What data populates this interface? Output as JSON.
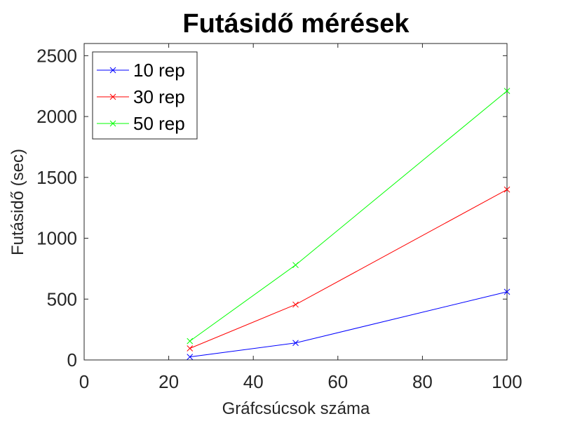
{
  "chart_data": {
    "type": "line",
    "title": "Futásidő mérések",
    "xlabel": "Gráfcsúcsok száma",
    "ylabel": "Futásidő (sec)",
    "xlim": [
      0,
      100
    ],
    "ylim": [
      0,
      2600
    ],
    "xticks": [
      "0",
      "20",
      "40",
      "60",
      "80",
      "100"
    ],
    "yticks": [
      "0",
      "500",
      "1000",
      "1500",
      "2000",
      "2500"
    ],
    "x": [
      25,
      50,
      100
    ],
    "series": [
      {
        "name": "10 rep",
        "values": [
          25,
          140,
          560
        ],
        "color": "#0000ff"
      },
      {
        "name": "30 rep",
        "values": [
          95,
          455,
          1400
        ],
        "color": "#ff0000"
      },
      {
        "name": "50 rep",
        "values": [
          155,
          780,
          2210
        ],
        "color": "#00ff00"
      }
    ],
    "marker": "x",
    "grid": false,
    "legend_position": "top-left"
  }
}
